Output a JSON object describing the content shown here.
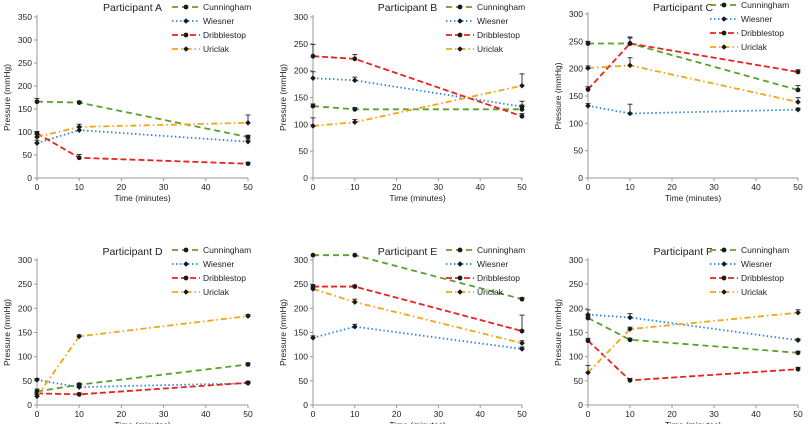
{
  "chart_data": [
    {
      "type": "line",
      "title": "Participant A",
      "xlabel": "Time (minutes)",
      "ylabel": "Pressure (mmHg)",
      "x": [
        0,
        10,
        50
      ],
      "xticks": [
        0,
        10,
        20,
        30,
        40,
        50
      ],
      "xlim": [
        0,
        50
      ],
      "ylim": [
        0,
        350
      ],
      "yticks": [
        0,
        50,
        100,
        150,
        200,
        250,
        300,
        350
      ],
      "grid": false,
      "legend": "top-right",
      "series": [
        {
          "name": "Cunningham",
          "values": [
            166,
            164,
            89
          ],
          "errors": [
            7,
            3,
            4
          ]
        },
        {
          "name": "Wiesner",
          "values": [
            76,
            104,
            79
          ],
          "errors": [
            6,
            8,
            4
          ]
        },
        {
          "name": "Dribblestop",
          "values": [
            97,
            44,
            31
          ],
          "errors": [
            4,
            7,
            3
          ]
        },
        {
          "name": "Uriclak",
          "values": [
            89,
            111,
            120
          ],
          "errors": [
            5,
            6,
            17
          ]
        }
      ]
    },
    {
      "type": "line",
      "title": "Participant B",
      "xlabel": "Time (minutes)",
      "ylabel": "Pressure (mmHg)",
      "x": [
        0,
        10,
        50
      ],
      "xticks": [
        0,
        10,
        20,
        30,
        40,
        50
      ],
      "xlim": [
        0,
        50
      ],
      "ylim": [
        0,
        300
      ],
      "yticks": [
        0,
        50,
        100,
        150,
        200,
        250,
        300
      ],
      "grid": false,
      "legend": "top-right",
      "series": [
        {
          "name": "Cunningham",
          "values": [
            134,
            128,
            128
          ],
          "errors": [
            4,
            3,
            8
          ]
        },
        {
          "name": "Wiesner",
          "values": [
            186,
            182,
            133
          ],
          "errors": [
            12,
            6,
            10
          ]
        },
        {
          "name": "Dribblestop",
          "values": [
            227,
            222,
            115
          ],
          "errors": [
            22,
            8,
            5
          ]
        },
        {
          "name": "Uriclak",
          "values": [
            97,
            104,
            172
          ],
          "errors": [
            15,
            5,
            22
          ]
        }
      ]
    },
    {
      "type": "line",
      "title": "Participant C",
      "xlabel": "Time (minutes)",
      "ylabel": "Pressure (mmHg)",
      "x": [
        0,
        10,
        50
      ],
      "xticks": [
        0,
        10,
        20,
        30,
        40,
        50
      ],
      "xlim": [
        0,
        50
      ],
      "ylim": [
        0,
        300
      ],
      "yticks": [
        0,
        50,
        100,
        150,
        200,
        250,
        300
      ],
      "grid": false,
      "legend": "top-right",
      "series": [
        {
          "name": "Cunningham",
          "values": [
            246,
            246,
            161
          ],
          "errors": [
            4,
            10,
            8
          ]
        },
        {
          "name": "Wiesner",
          "values": [
            132,
            118,
            125
          ],
          "errors": [
            4,
            17,
            3
          ]
        },
        {
          "name": "Dribblestop",
          "values": [
            162,
            246,
            194
          ],
          "errors": [
            5,
            12,
            4
          ]
        },
        {
          "name": "Uriclak",
          "values": [
            201,
            206,
            139
          ],
          "errors": [
            4,
            14,
            8
          ]
        }
      ]
    },
    {
      "type": "line",
      "title": "Participant D",
      "xlabel": "Time (minutes)",
      "ylabel": "Pressure (mmHg)",
      "x": [
        0,
        10,
        50
      ],
      "xticks": [
        0,
        10,
        20,
        30,
        40,
        50
      ],
      "xlim": [
        0,
        50
      ],
      "ylim": [
        0,
        300
      ],
      "yticks": [
        0,
        50,
        100,
        150,
        200,
        250,
        300
      ],
      "grid": false,
      "legend": "top-right",
      "series": [
        {
          "name": "Cunningham",
          "values": [
            28,
            42,
            84
          ],
          "errors": [
            5,
            3,
            3
          ]
        },
        {
          "name": "Wiesner",
          "values": [
            52,
            37,
            45
          ],
          "errors": [
            3,
            6,
            3
          ]
        },
        {
          "name": "Dribblestop",
          "values": [
            24,
            22,
            46
          ],
          "errors": [
            3,
            3,
            3
          ]
        },
        {
          "name": "Uriclak",
          "values": [
            18,
            142,
            184
          ],
          "errors": [
            4,
            3,
            3
          ]
        }
      ]
    },
    {
      "type": "line",
      "title": "Participant E",
      "xlabel": "Time (minutes)",
      "ylabel": "Pressure (mmHg)",
      "x": [
        0,
        10,
        50
      ],
      "xticks": [
        0,
        10,
        20,
        30,
        40,
        50
      ],
      "xlim": [
        0,
        50
      ],
      "ylim": [
        0,
        300
      ],
      "yticks": [
        0,
        50,
        100,
        150,
        200,
        250,
        300
      ],
      "grid": false,
      "legend": "top-right",
      "series": [
        {
          "name": "Cunningham",
          "values": [
            310,
            310,
            219
          ],
          "errors": [
            0,
            0,
            3
          ]
        },
        {
          "name": "Wiesner",
          "values": [
            139,
            162,
            116
          ],
          "errors": [
            4,
            5,
            4
          ]
        },
        {
          "name": "Dribblestop",
          "values": [
            245,
            245,
            153
          ],
          "errors": [
            4,
            3,
            33
          ]
        },
        {
          "name": "Uriclak",
          "values": [
            240,
            213,
            128
          ],
          "errors": [
            4,
            6,
            5
          ]
        }
      ]
    },
    {
      "type": "line",
      "title": "Participant F",
      "xlabel": "Time (minutes)",
      "ylabel": "Pressure (mmHg)",
      "x": [
        0,
        10,
        50
      ],
      "xticks": [
        0,
        10,
        20,
        30,
        40,
        50
      ],
      "xlim": [
        0,
        50
      ],
      "ylim": [
        0,
        300
      ],
      "yticks": [
        0,
        50,
        100,
        150,
        200,
        250,
        300
      ],
      "grid": false,
      "legend": "top-right",
      "series": [
        {
          "name": "Cunningham",
          "values": [
            180,
            135,
            108
          ],
          "errors": [
            4,
            3,
            3
          ]
        },
        {
          "name": "Wiesner",
          "values": [
            187,
            181,
            134
          ],
          "errors": [
            10,
            8,
            3
          ]
        },
        {
          "name": "Dribblestop",
          "values": [
            133,
            51,
            74
          ],
          "errors": [
            5,
            4,
            4
          ]
        },
        {
          "name": "Uriclak",
          "values": [
            67,
            157,
            191
          ],
          "errors": [
            15,
            4,
            6
          ]
        }
      ]
    }
  ],
  "series_styles": [
    {
      "color": "#5aa02c",
      "dash": "6,4",
      "marker": "circle"
    },
    {
      "color": "#2e86de",
      "dash": "1.5,2.5",
      "marker": "diamond"
    },
    {
      "color": "#e8231c",
      "dash": "6,3",
      "marker": "circle"
    },
    {
      "color": "#f2a516",
      "dash": "6,3,1.5,3",
      "marker": "diamond"
    }
  ],
  "colors": {
    "axis": "#9a9a9a",
    "text": "#222222",
    "marker": "#1a1a1a"
  }
}
